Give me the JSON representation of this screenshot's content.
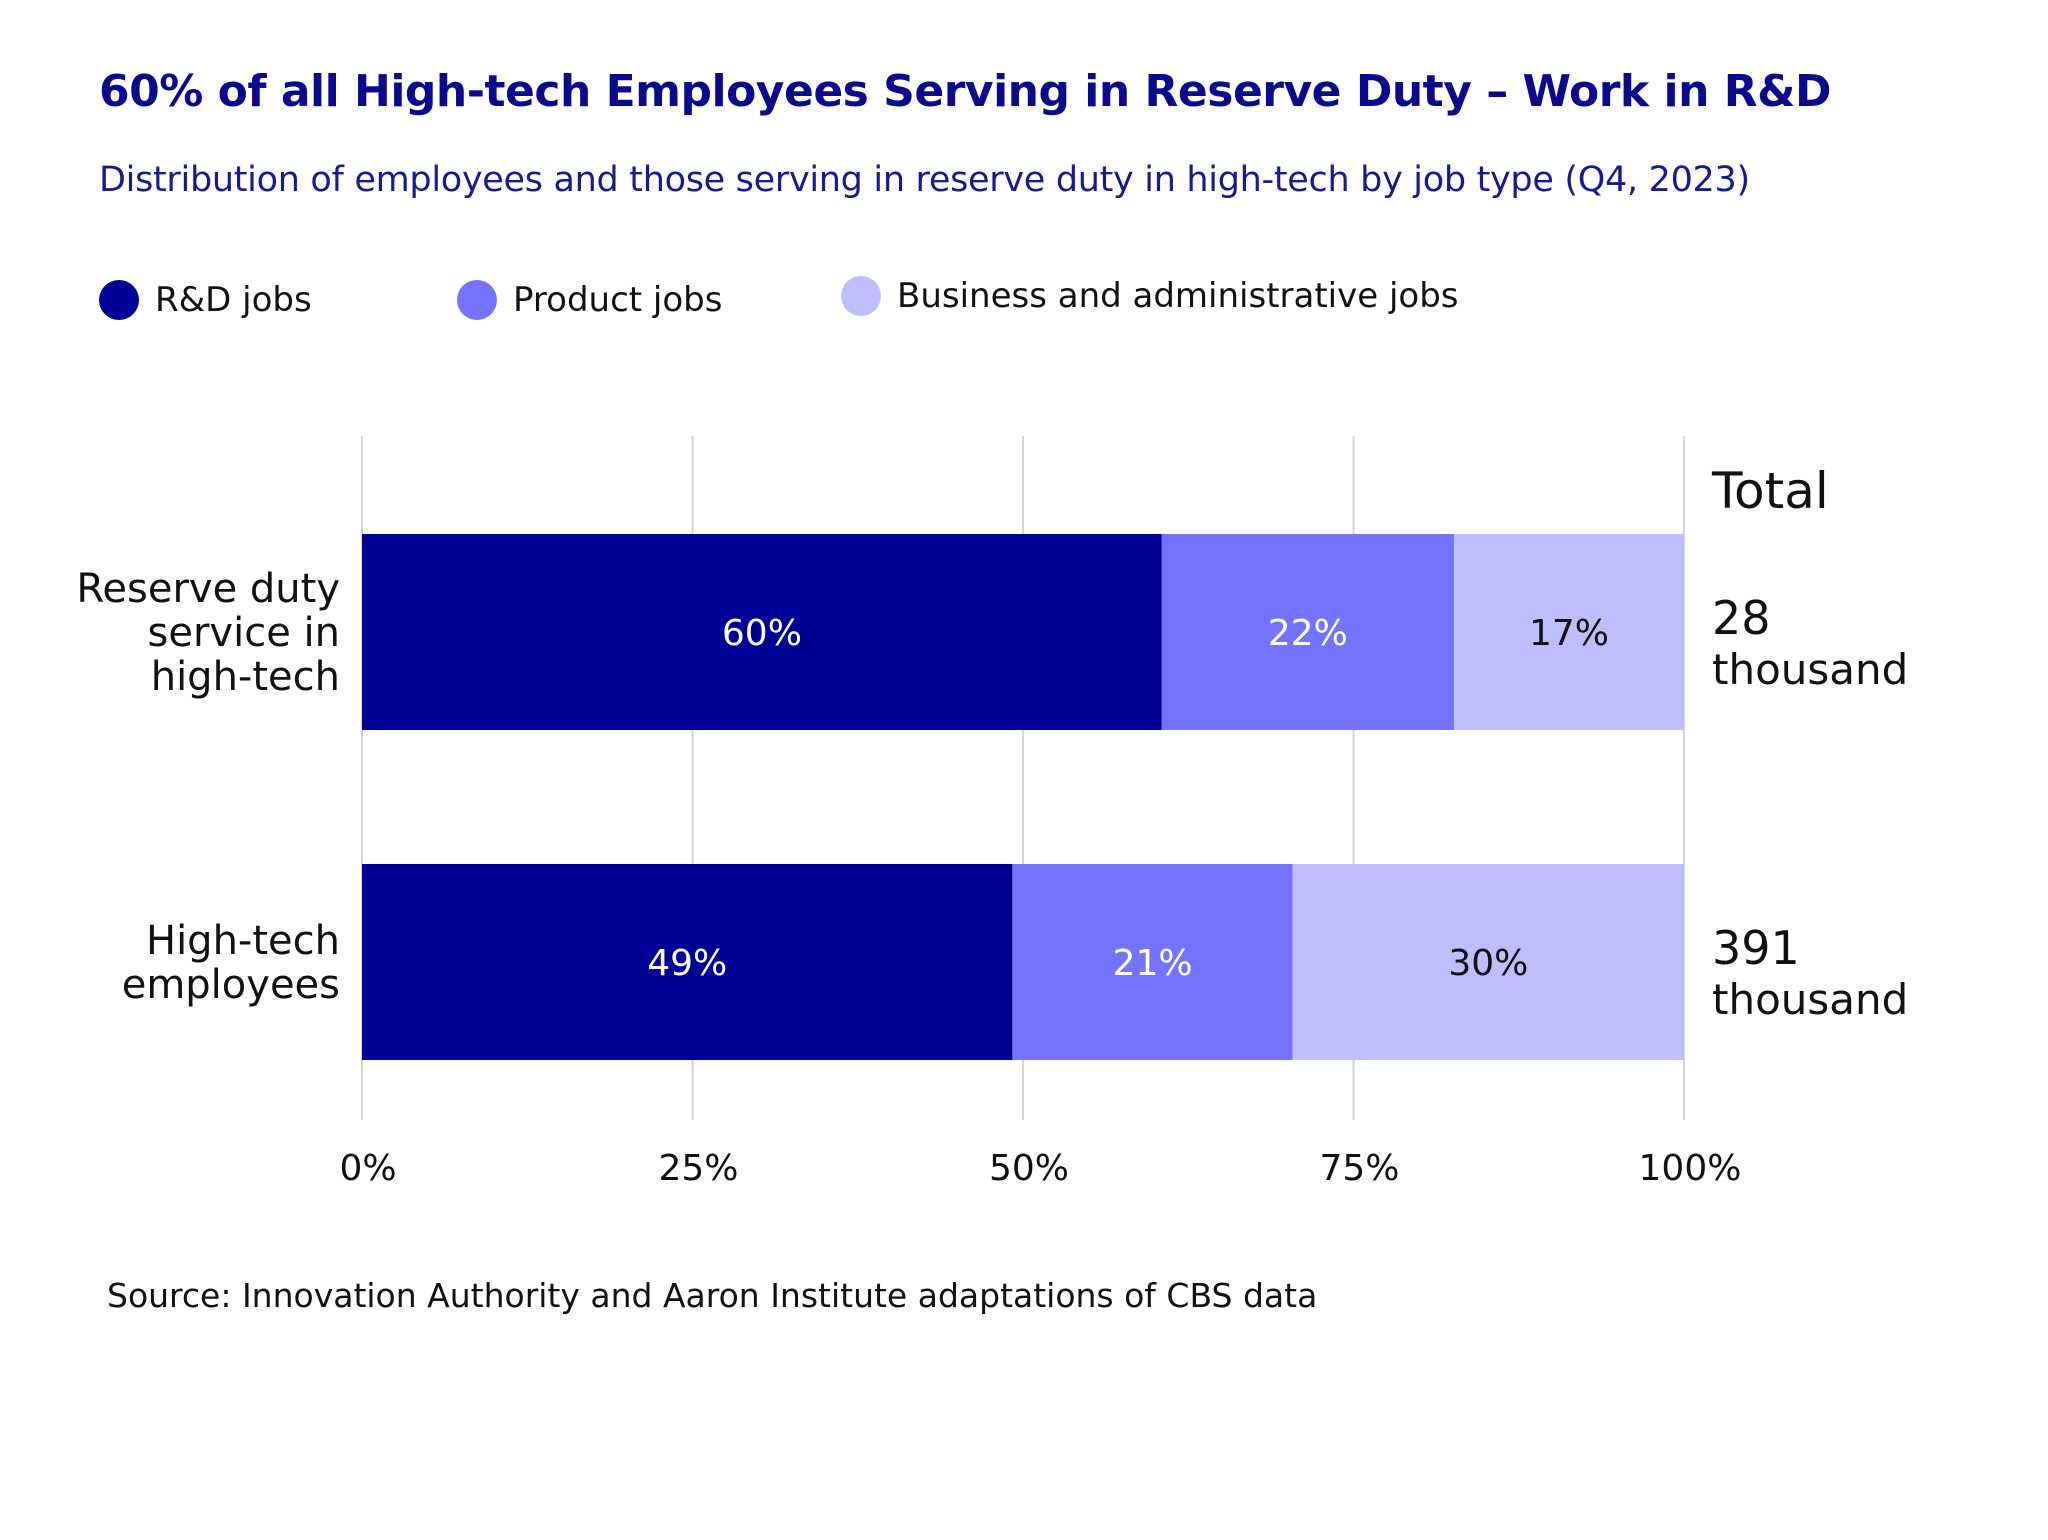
{
  "chart_data": {
    "type": "bar",
    "orientation": "horizontal",
    "stacked": true,
    "title": "60% of all High-tech Employees Serving in Reserve Duty – Work in R&D",
    "subtitle": "Distribution of employees and those serving in reserve duty in high-tech by job type (Q4, 2023)",
    "categories": [
      {
        "lines": [
          "Reserve duty",
          "service in",
          "high-tech"
        ]
      },
      {
        "lines": [
          "High-tech",
          "employees"
        ]
      }
    ],
    "series": [
      {
        "name": "R&D jobs",
        "color": "#000096",
        "label_color": "#ffffff",
        "values": [
          60.5,
          49.2
        ],
        "labels": [
          "60%",
          "49%"
        ]
      },
      {
        "name": "Product jobs",
        "color": "#7373ff",
        "label_color": "#ffffff",
        "values": [
          22.1,
          21.2
        ],
        "labels": [
          "22%",
          "21%"
        ]
      },
      {
        "name": "Business and administrative jobs",
        "color": "#bebeff",
        "label_color": "#111111",
        "values": [
          17.4,
          29.6
        ],
        "labels": [
          "17%",
          "30%"
        ]
      }
    ],
    "totals_header": "Total",
    "totals": [
      {
        "value": "28",
        "unit": "thousand"
      },
      {
        "value": "391",
        "unit": "thousand"
      }
    ],
    "xlim": [
      0,
      100
    ],
    "xticks": [
      0,
      25,
      50,
      75,
      100
    ],
    "xtick_labels": [
      "0%",
      "25%",
      "50%",
      "75%",
      "100%"
    ],
    "grid": true,
    "legend_position": "top-left",
    "source": "Source: Innovation Authority and Aaron Institute adaptations of CBS data"
  }
}
